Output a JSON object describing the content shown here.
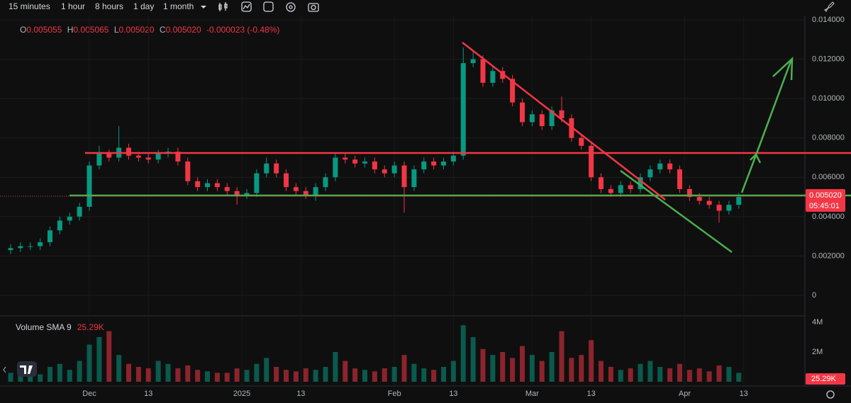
{
  "toolbar": {
    "intervals": [
      "15 minutes",
      "1 hour",
      "8 hours",
      "1 day",
      "1 month"
    ],
    "active": 2
  },
  "legend": {
    "ohlc": [
      {
        "label": "O",
        "value": "0.005055"
      },
      {
        "label": "H",
        "value": "0.005065"
      },
      {
        "label": "L",
        "value": "0.005020"
      },
      {
        "label": "C",
        "value": "0.005020"
      }
    ],
    "change": "-0.000023 (-0.48%)"
  },
  "price_tag": {
    "price": "0.005020",
    "countdown": "05:45:01"
  },
  "volume_legend": {
    "label": "Volume SMA 9",
    "value": "25.29K"
  },
  "volume_tag": "25.29K",
  "chart_data": {
    "type": "candlestick",
    "x": [
      0,
      2,
      4,
      6,
      8,
      10,
      12,
      14,
      16,
      18,
      20,
      22,
      24,
      26,
      28,
      30,
      32,
      34,
      36,
      38,
      40,
      42,
      44,
      46,
      48,
      50,
      52,
      54,
      56,
      58,
      60,
      62,
      64,
      66,
      68,
      70,
      72,
      74,
      76,
      78,
      80,
      82,
      84,
      86,
      88,
      90,
      92,
      94,
      96,
      98,
      100,
      102,
      104,
      106,
      108,
      110,
      112,
      114,
      116,
      118,
      120,
      122,
      124,
      126,
      128,
      130,
      132,
      134,
      136,
      138,
      140,
      142,
      144,
      146,
      148
    ],
    "open": [
      0.0023,
      0.0024,
      0.0025,
      0.0025,
      0.0027,
      0.0033,
      0.0038,
      0.004,
      0.0045,
      0.0066,
      0.0072,
      0.007,
      0.0075,
      0.0071,
      0.007,
      0.0069,
      0.0072,
      0.0073,
      0.0068,
      0.0058,
      0.0055,
      0.0057,
      0.0055,
      0.0053,
      0.0051,
      0.0052,
      0.0062,
      0.0067,
      0.0062,
      0.0055,
      0.0053,
      0.0051,
      0.0055,
      0.006,
      0.007,
      0.0069,
      0.0067,
      0.0068,
      0.0064,
      0.0062,
      0.0066,
      0.0055,
      0.0064,
      0.0068,
      0.0066,
      0.0068,
      0.0071,
      0.0118,
      0.012,
      0.0108,
      0.0114,
      0.011,
      0.0098,
      0.0088,
      0.0092,
      0.0086,
      0.0094,
      0.009,
      0.008,
      0.0076,
      0.006,
      0.0054,
      0.0052,
      0.0056,
      0.0054,
      0.006,
      0.0064,
      0.0067,
      0.0064,
      0.0054,
      0.005,
      0.0048,
      0.0046,
      0.0043,
      0.0046
    ],
    "high": [
      0.0026,
      0.0027,
      0.0027,
      0.0029,
      0.0035,
      0.004,
      0.0042,
      0.0047,
      0.0068,
      0.0076,
      0.0074,
      0.0086,
      0.0077,
      0.0073,
      0.0072,
      0.0074,
      0.0075,
      0.0075,
      0.007,
      0.006,
      0.0059,
      0.0059,
      0.0057,
      0.0055,
      0.0054,
      0.0064,
      0.007,
      0.0069,
      0.0064,
      0.0057,
      0.0055,
      0.0057,
      0.0062,
      0.0072,
      0.0072,
      0.0071,
      0.007,
      0.007,
      0.0066,
      0.0068,
      0.0068,
      0.0066,
      0.007,
      0.007,
      0.007,
      0.0073,
      0.0126,
      0.0124,
      0.0122,
      0.0116,
      0.0116,
      0.0112,
      0.01,
      0.0094,
      0.0094,
      0.0096,
      0.0101,
      0.0092,
      0.0082,
      0.0078,
      0.0062,
      0.0056,
      0.0058,
      0.0058,
      0.0062,
      0.0066,
      0.0069,
      0.0069,
      0.0066,
      0.0056,
      0.0052,
      0.005,
      0.0048,
      0.0048,
      0.0052
    ],
    "low": [
      0.0021,
      0.0022,
      0.0023,
      0.0023,
      0.0025,
      0.0031,
      0.0036,
      0.0038,
      0.0043,
      0.0064,
      0.0068,
      0.0068,
      0.0069,
      0.0068,
      0.0067,
      0.0067,
      0.007,
      0.0066,
      0.0056,
      0.0053,
      0.0053,
      0.0053,
      0.0051,
      0.0046,
      0.0049,
      0.005,
      0.006,
      0.006,
      0.0053,
      0.0051,
      0.0049,
      0.0048,
      0.0053,
      0.0058,
      0.0067,
      0.0065,
      0.0065,
      0.0062,
      0.006,
      0.006,
      0.0042,
      0.0053,
      0.0062,
      0.0064,
      0.0064,
      0.0066,
      0.0069,
      0.0116,
      0.0106,
      0.0106,
      0.0108,
      0.0096,
      0.0086,
      0.0086,
      0.0084,
      0.0084,
      0.0088,
      0.0078,
      0.0074,
      0.0058,
      0.0052,
      0.005,
      0.005,
      0.0052,
      0.0052,
      0.0058,
      0.0062,
      0.0062,
      0.0052,
      0.0048,
      0.0046,
      0.0044,
      0.0037,
      0.0041,
      0.0044
    ],
    "close": [
      0.0024,
      0.0025,
      0.0025,
      0.0027,
      0.0033,
      0.0038,
      0.004,
      0.0045,
      0.0066,
      0.0072,
      0.007,
      0.0075,
      0.0071,
      0.007,
      0.0069,
      0.0072,
      0.0073,
      0.0068,
      0.0058,
      0.0055,
      0.0057,
      0.0055,
      0.0053,
      0.0051,
      0.0052,
      0.0062,
      0.0067,
      0.0062,
      0.0055,
      0.0053,
      0.0051,
      0.0055,
      0.006,
      0.007,
      0.0069,
      0.0067,
      0.0068,
      0.0064,
      0.0062,
      0.0066,
      0.0055,
      0.0064,
      0.0068,
      0.0066,
      0.0068,
      0.0071,
      0.0118,
      0.012,
      0.0108,
      0.0114,
      0.011,
      0.0098,
      0.0088,
      0.0092,
      0.0086,
      0.0094,
      0.009,
      0.008,
      0.0076,
      0.006,
      0.0054,
      0.0052,
      0.0056,
      0.0054,
      0.006,
      0.0064,
      0.0067,
      0.0064,
      0.0054,
      0.005,
      0.0048,
      0.0046,
      0.0043,
      0.0046,
      0.005
    ],
    "volume": [
      600000,
      500000,
      400000,
      500000,
      1000000,
      1200000,
      800000,
      1400000,
      2500000,
      3000000,
      3400000,
      1800000,
      1200000,
      1000000,
      900000,
      1400000,
      1200000,
      900000,
      1100000,
      800000,
      700000,
      600000,
      600000,
      900000,
      800000,
      1200000,
      1600000,
      1000000,
      800000,
      700000,
      900000,
      800000,
      1000000,
      2000000,
      1400000,
      900000,
      800000,
      700000,
      900000,
      1000000,
      1800000,
      1200000,
      900000,
      800000,
      1000000,
      1400000,
      3800000,
      3000000,
      2200000,
      1800000,
      2000000,
      1600000,
      2400000,
      1800000,
      1400000,
      2000000,
      3400000,
      1600000,
      1800000,
      2800000,
      1400000,
      1000000,
      800000,
      900000,
      1200000,
      1400000,
      1000000,
      900000,
      1200000,
      800000,
      900000,
      700000,
      1100000,
      1000000,
      600000
    ],
    "up_color": "#089981",
    "down_color": "#f23645",
    "xlim": [
      0,
      160
    ],
    "xticks": [
      {
        "value": 16,
        "label": "Dec"
      },
      {
        "value": 28,
        "label": "13"
      },
      {
        "value": 47,
        "label": "2025"
      },
      {
        "value": 59,
        "label": "13"
      },
      {
        "value": 78,
        "label": "Feb"
      },
      {
        "value": 90,
        "label": "13"
      },
      {
        "value": 106,
        "label": "Mar"
      },
      {
        "value": 118,
        "label": "13"
      },
      {
        "value": 137,
        "label": "Apr"
      },
      {
        "value": 149,
        "label": "13"
      }
    ],
    "ylim": [
      0,
      0.014
    ],
    "yticks": [
      0,
      {
        "value": 0.002,
        "label": "0.002000"
      },
      {
        "value": 0.004,
        "label": "0.004000"
      },
      {
        "value": 0.006,
        "label": "0.006000"
      },
      {
        "value": 0.008,
        "label": "0.008000"
      },
      {
        "value": 0.01,
        "label": "0.010000"
      },
      {
        "value": 0.012,
        "label": "0.012000"
      },
      {
        "value": 0.014,
        "label": "0.014000"
      }
    ],
    "vlim": [
      0,
      4000000
    ],
    "vticks": [
      {
        "value": 2000000,
        "label": "2M"
      },
      {
        "value": 4000000,
        "label": "4M"
      }
    ]
  }
}
